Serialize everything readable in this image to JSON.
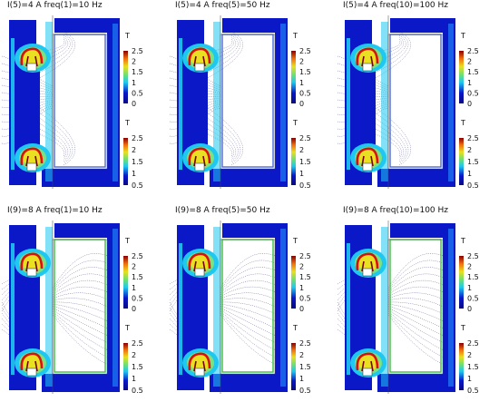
{
  "unit_label": "T",
  "colorbar_ticks": [
    "2.5",
    "2",
    "1.5",
    "1",
    "0.5"
  ],
  "colorbar_upper_ticks": [
    "2.5",
    "2",
    "1.5",
    "1",
    "0.5",
    "0"
  ],
  "colors": {
    "field_low": "#0a18c8",
    "field_mid": "#1ec8f0",
    "field_high": "#d81010",
    "streamline": "#2a2a6a",
    "accent_yellow": "#e8e020",
    "accent_green": "#38c040"
  },
  "panels": [
    {
      "title": "I(5)=4 A freq(1)=10 Hz",
      "streamline_side": "left"
    },
    {
      "title": "I(5)=4 A freq(5)=50 Hz",
      "streamline_side": "left"
    },
    {
      "title": "I(5)=4 A freq(10)=100 Hz",
      "streamline_side": "left"
    },
    {
      "title": "I(9)=8 A freq(1)=10 Hz",
      "streamline_side": "right"
    },
    {
      "title": "I(9)=8 A freq(5)=50 Hz",
      "streamline_side": "right"
    },
    {
      "title": "I(9)=8 A freq(10)=100 Hz",
      "streamline_side": "right"
    }
  ]
}
